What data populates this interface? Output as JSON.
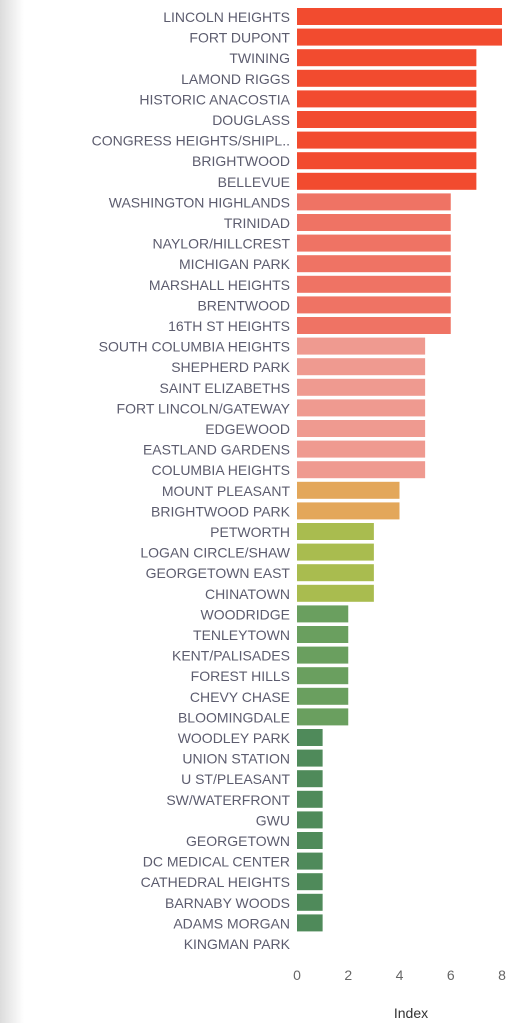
{
  "chart_data": {
    "type": "bar",
    "orientation": "horizontal",
    "xlabel": "Index",
    "xlim": [
      0,
      8
    ],
    "xticks": [
      0,
      2,
      4,
      6,
      8
    ],
    "grid": false,
    "categories": [
      "LINCOLN HEIGHTS",
      "FORT DUPONT",
      "TWINING",
      "LAMOND RIGGS",
      "HISTORIC ANACOSTIA",
      "DOUGLASS",
      "CONGRESS HEIGHTS/SHIPL..",
      "BRIGHTWOOD",
      "BELLEVUE",
      "WASHINGTON HIGHLANDS",
      "TRINIDAD",
      "NAYLOR/HILLCREST",
      "MICHIGAN PARK",
      "MARSHALL HEIGHTS",
      "BRENTWOOD",
      "16TH ST HEIGHTS",
      "SOUTH COLUMBIA HEIGHTS",
      "SHEPHERD PARK",
      "SAINT ELIZABETHS",
      "FORT LINCOLN/GATEWAY",
      "EDGEWOOD",
      "EASTLAND GARDENS",
      "COLUMBIA HEIGHTS",
      "MOUNT PLEASANT",
      "BRIGHTWOOD PARK",
      "PETWORTH",
      "LOGAN CIRCLE/SHAW",
      "GEORGETOWN EAST",
      "CHINATOWN",
      "WOODRIDGE",
      "TENLEYTOWN",
      "KENT/PALISADES",
      "FOREST HILLS",
      "CHEVY CHASE",
      "BLOOMINGDALE",
      "WOODLEY PARK",
      "UNION STATION",
      "U ST/PLEASANT",
      "SW/WATERFRONT",
      "GWU",
      "GEORGETOWN",
      "DC MEDICAL CENTER",
      "CATHEDRAL HEIGHTS",
      "BARNABY WOODS",
      "ADAMS MORGAN",
      "KINGMAN PARK"
    ],
    "values": [
      8,
      8,
      7,
      7,
      7,
      7,
      7,
      7,
      7,
      6,
      6,
      6,
      6,
      6,
      6,
      6,
      5,
      5,
      5,
      5,
      5,
      5,
      5,
      4,
      4,
      3,
      3,
      3,
      3,
      2,
      2,
      2,
      2,
      2,
      2,
      1,
      1,
      1,
      1,
      1,
      1,
      1,
      1,
      1,
      1,
      0
    ],
    "colors": {
      "8": "#f24b2f",
      "7": "#f24b2f",
      "6": "#ef7364",
      "5": "#ef9a90",
      "4": "#e3a75a",
      "3": "#a9bc4f",
      "2": "#6a9f5f",
      "1": "#4f8a5a",
      "0": "#4f8a5a"
    },
    "label_color": "#5c5c6e"
  }
}
